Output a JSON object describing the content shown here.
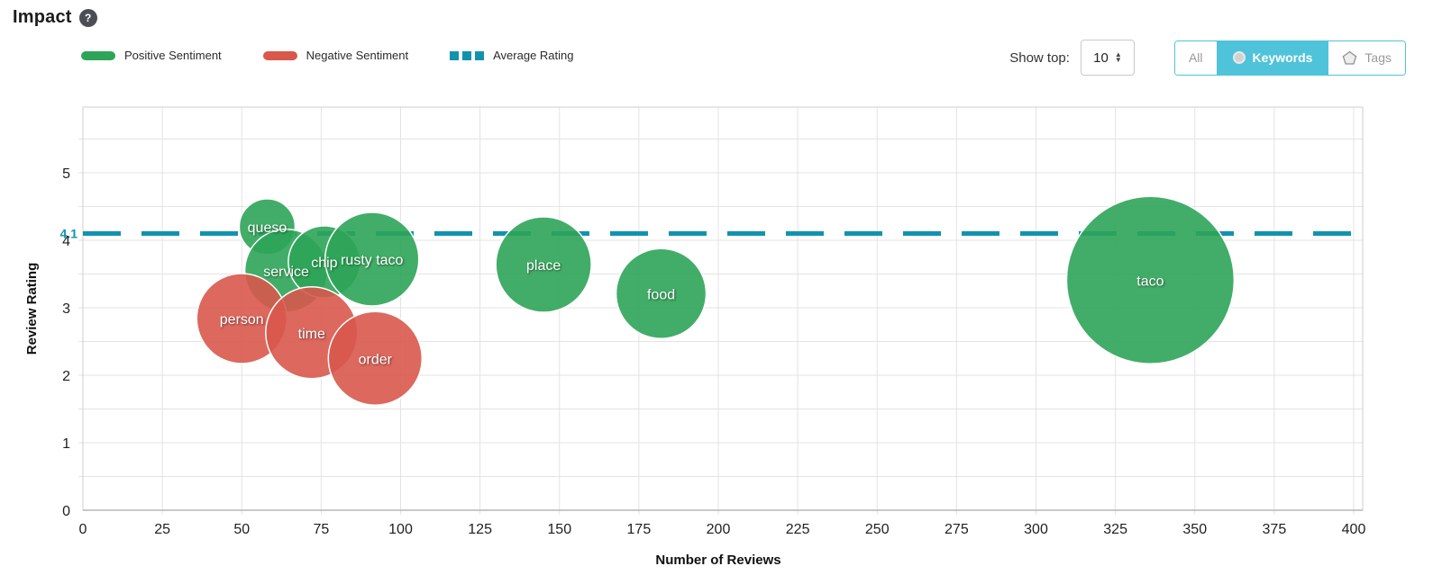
{
  "header": {
    "title": "Impact",
    "help": "?"
  },
  "legend": [
    {
      "label": "Positive Sentiment",
      "color": "#2ea458",
      "style": "solid"
    },
    {
      "label": "Negative Sentiment",
      "color": "#d8584c",
      "style": "solid"
    },
    {
      "label": "Average Rating",
      "color": "#1193ae",
      "style": "dashed"
    }
  ],
  "controls": {
    "show_top_label": "Show top:",
    "show_top_value": "10",
    "toggle": {
      "accent": "#4fc3d9",
      "options": [
        {
          "label": "All",
          "selected": false,
          "icon": ""
        },
        {
          "label": "Keywords",
          "selected": true,
          "icon": "circle"
        },
        {
          "label": "Tags",
          "selected": false,
          "icon": "pentagon"
        }
      ]
    }
  },
  "chart_data": {
    "type": "scatter",
    "subtype": "bubble",
    "title": "Impact",
    "xlabel": "Number of Reviews",
    "ylabel": "Review Rating",
    "xlim": [
      0,
      400
    ],
    "ylim": [
      0,
      5.95
    ],
    "x_ticks": [
      0,
      25,
      50,
      75,
      100,
      125,
      150,
      175,
      200,
      225,
      250,
      275,
      300,
      325,
      350,
      375,
      400
    ],
    "y_ticks": [
      0,
      1,
      2,
      3,
      4,
      5
    ],
    "x_gridlines": [
      25,
      50,
      75,
      100,
      125,
      150,
      175,
      200,
      225,
      250,
      275,
      300,
      325,
      350,
      375,
      400
    ],
    "y_gridlines": [
      0.5,
      1,
      1.5,
      2,
      2.5,
      3,
      3.5,
      4,
      4.5,
      5,
      5.5
    ],
    "grid": true,
    "average_rating": 4.1,
    "average_line_color": "#1193ae",
    "series": [
      {
        "name": "Positive Sentiment",
        "color": "#2ea458",
        "points": [
          {
            "label": "queso",
            "x": 58,
            "y": 4.2,
            "r": 31
          },
          {
            "label": "service",
            "x": 64,
            "y": 3.55,
            "r": 46
          },
          {
            "label": "chip",
            "x": 76,
            "y": 3.68,
            "r": 40
          },
          {
            "label": "rusty taco",
            "x": 91,
            "y": 3.72,
            "r": 52
          },
          {
            "label": "place",
            "x": 145,
            "y": 3.64,
            "r": 53
          },
          {
            "label": "food",
            "x": 182,
            "y": 3.21,
            "r": 50
          },
          {
            "label": "taco",
            "x": 336,
            "y": 3.41,
            "r": 93
          }
        ]
      },
      {
        "name": "Negative Sentiment",
        "color": "#d8584c",
        "points": [
          {
            "label": "person",
            "x": 50,
            "y": 2.84,
            "r": 50
          },
          {
            "label": "time",
            "x": 72,
            "y": 2.63,
            "r": 51
          },
          {
            "label": "order",
            "x": 92,
            "y": 2.25,
            "r": 52
          }
        ]
      }
    ]
  }
}
